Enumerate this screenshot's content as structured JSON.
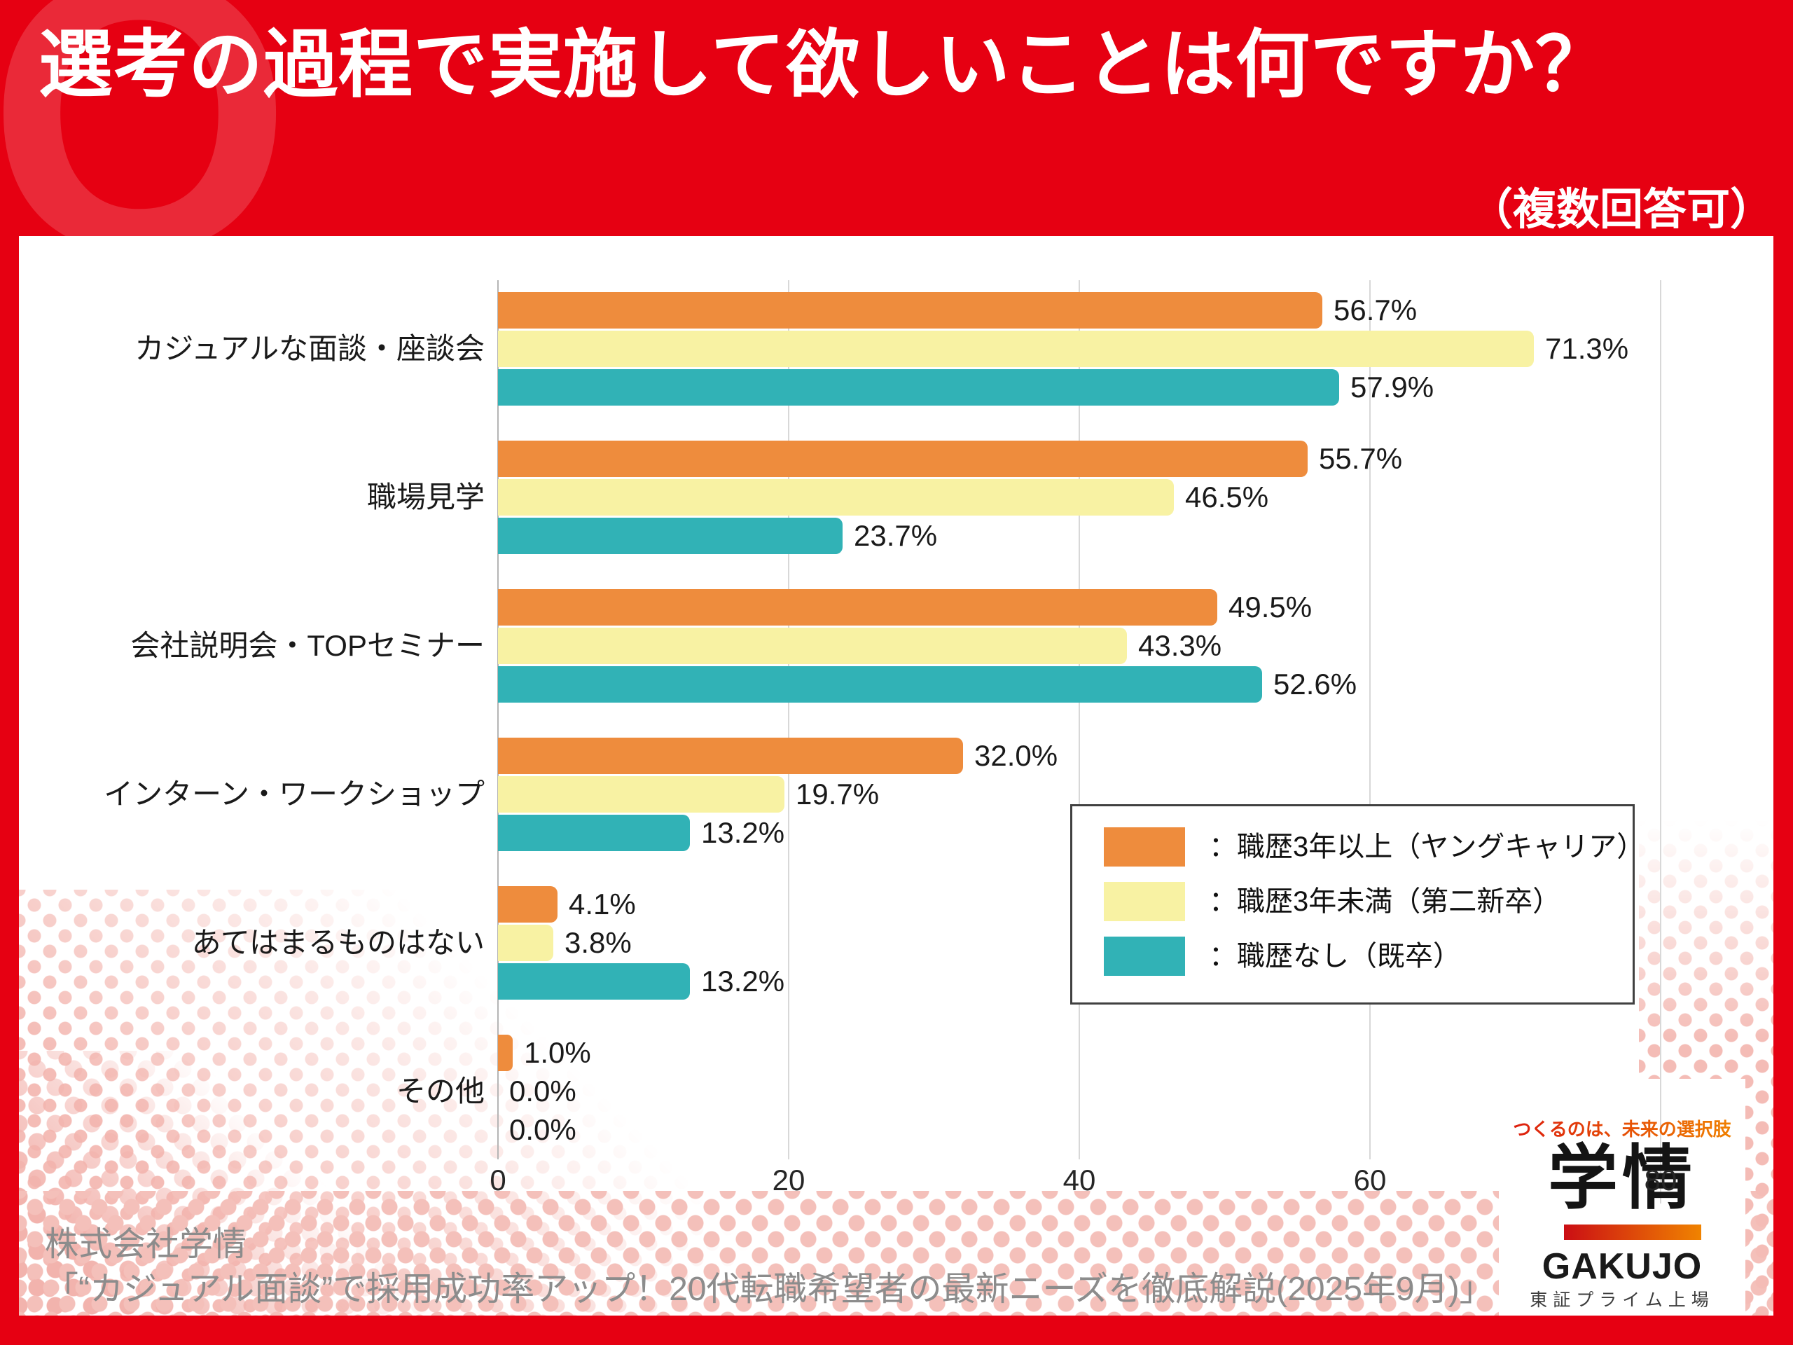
{
  "header": {
    "q_watermark": "Q",
    "title": "選考の過程で実施して欲しいことは何ですか？",
    "subtitle": "（複数回答可）"
  },
  "chart_data": {
    "type": "bar",
    "orientation": "horizontal",
    "title": "選考の過程で実施して欲しいことは何ですか？（複数回答可）",
    "categories": [
      "カジュアルな面談・座談会",
      "職場見学",
      "会社説明会・TOPセミナー",
      "インターン・ワークショップ",
      "あてはまるものはない",
      "その他"
    ],
    "series": [
      {
        "name": "：職歴3年以上（ヤングキャリア）",
        "color": "#ee8c3d",
        "values": [
          56.7,
          55.7,
          49.5,
          32.0,
          4.1,
          1.0
        ]
      },
      {
        "name": "：職歴3年未満（第二新卒）",
        "color": "#f8f2a3",
        "values": [
          71.3,
          46.5,
          43.3,
          19.7,
          3.8,
          0.0
        ]
      },
      {
        "name": "：職歴なし（既卒）",
        "color": "#31b2b6",
        "values": [
          57.9,
          23.7,
          52.6,
          13.2,
          13.2,
          0.0
        ]
      }
    ],
    "value_suffix": "%",
    "xlim": [
      0,
      80
    ],
    "x_ticks": [
      0,
      20,
      40,
      60,
      80
    ],
    "grid": true,
    "legend_position": "middle-right"
  },
  "footer": {
    "source_line1": "株式会社学情",
    "source_line2": "「“カジュアル面談”で採用成功率アップ！20代転職希望者の最新ニーズを徹底解説(2025年9月)」"
  },
  "logo": {
    "tagline": "つくるのは、未来の選択肢",
    "kanji": "学情",
    "name": "GAKUJO",
    "listing": "東証プライム上場"
  },
  "colors": {
    "background_red": "#e60012",
    "bar_orange": "#ee8c3d",
    "bar_yellow": "#f8f2a3",
    "bar_teal": "#31b2b6",
    "gridline": "#d8d8d8",
    "source_text": "#8c8c8c",
    "halftone_dot": "#f4bcb6",
    "logo_gradient_start": "#cb0e14",
    "logo_gradient_end": "#f08300"
  }
}
